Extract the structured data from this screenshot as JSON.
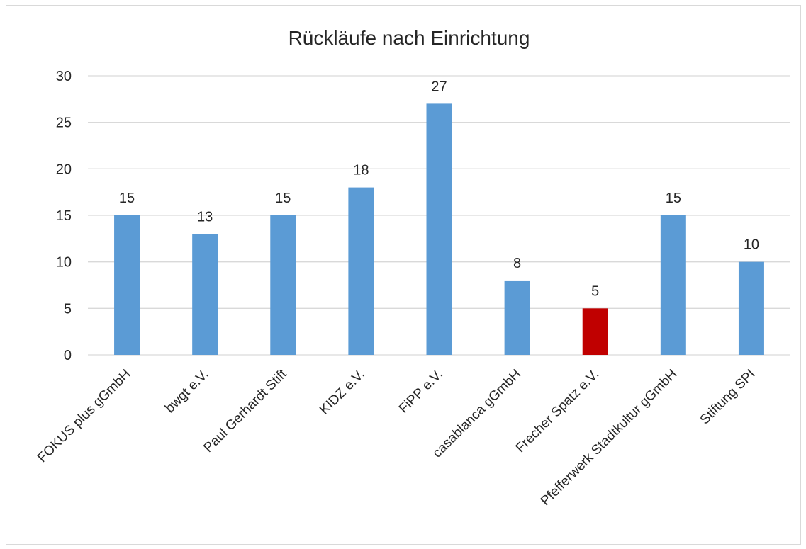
{
  "chart_data": {
    "type": "bar",
    "title": "Rückläufe nach Einrichtung",
    "xlabel": "",
    "ylabel": "",
    "categories": [
      "FOKUS plus gGmbH",
      "bwgt e.V.",
      "Paul Gerhardt Stift",
      "KIDZ e.V.",
      "FiPP e.V.",
      "casablanca gGmbH",
      "Frecher Spatz e.V.",
      "Pfefferwerk Stadtkultur gGmbH",
      "Stiftung SPI"
    ],
    "values": [
      15,
      13,
      15,
      18,
      27,
      8,
      5,
      15,
      10
    ],
    "data_labels": [
      "15",
      "13",
      "15",
      "18",
      "27",
      "8",
      "5",
      "15",
      "10"
    ],
    "ylim": [
      0,
      30
    ],
    "yticks": [
      "0",
      "5",
      "10",
      "15",
      "20",
      "25",
      "30"
    ],
    "grid": true,
    "legend": "none",
    "colors": {
      "default_bar": "#5b9bd5",
      "highlight_bar": "#c00000",
      "gridline": "#d9d9d9",
      "text": "#262626"
    },
    "highlight_index": 6
  }
}
